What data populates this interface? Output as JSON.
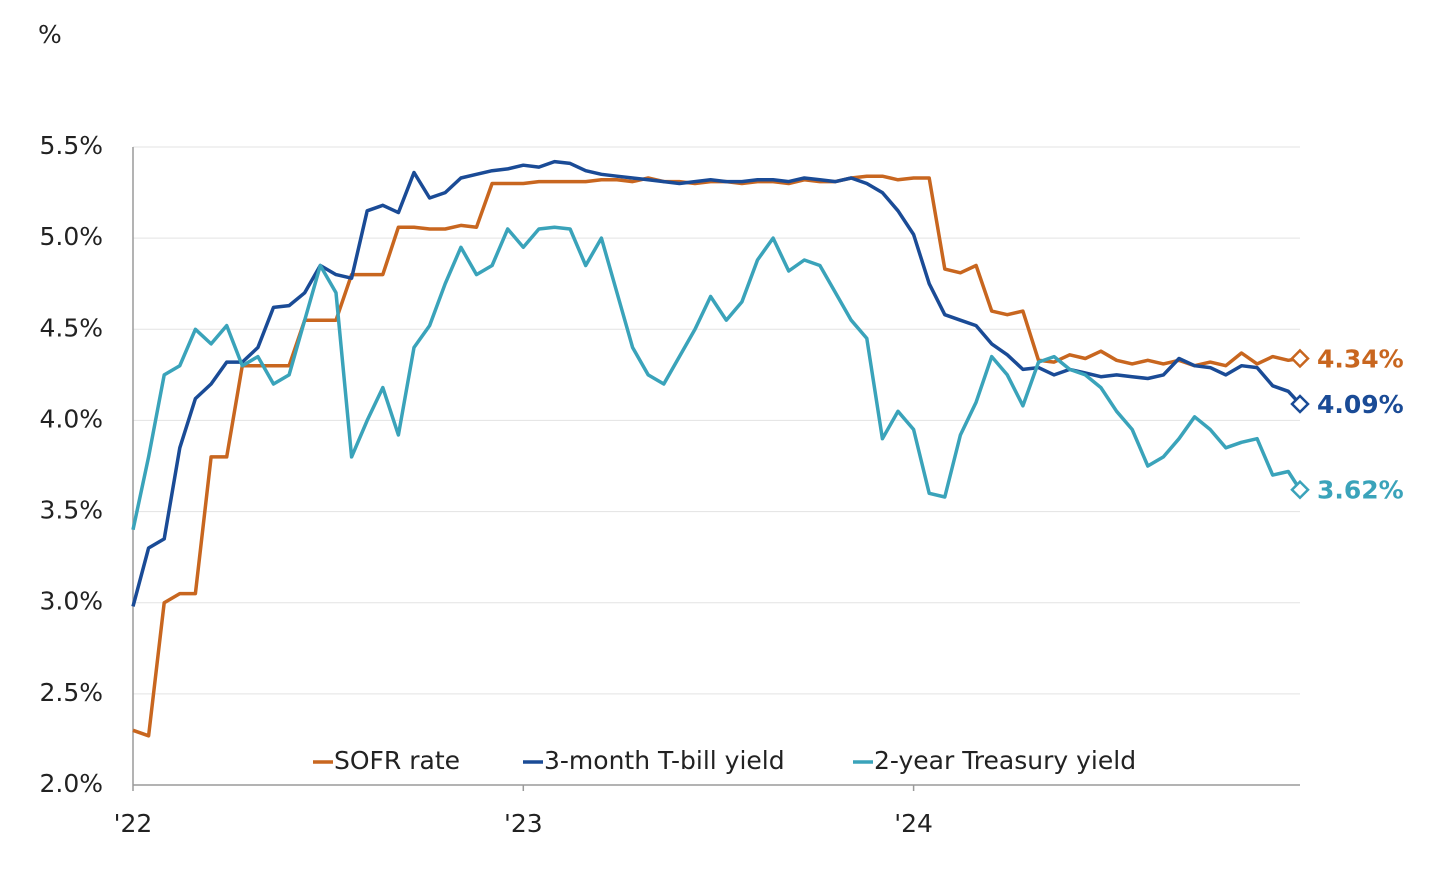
{
  "chart_data": {
    "type": "line",
    "title": "%",
    "x": [
      0,
      0.04,
      0.08,
      0.12,
      0.16,
      0.2,
      0.24,
      0.28,
      0.32,
      0.36,
      0.4,
      0.44,
      0.48,
      0.52,
      0.56,
      0.6,
      0.64,
      0.68,
      0.72,
      0.76,
      0.8,
      0.84,
      0.88,
      0.92,
      0.96,
      1,
      1.04,
      1.08,
      1.12,
      1.16,
      1.2,
      1.24,
      1.28,
      1.32,
      1.36,
      1.4,
      1.44,
      1.48,
      1.52,
      1.56,
      1.6,
      1.64,
      1.68,
      1.72,
      1.76,
      1.8,
      1.84,
      1.88,
      1.92,
      1.96,
      2,
      2.04,
      2.08,
      2.12,
      2.16,
      2.2,
      2.24,
      2.28,
      2.32,
      2.36,
      2.4,
      2.44,
      2.48,
      2.52,
      2.56,
      2.6,
      2.64,
      2.68,
      2.72,
      2.76,
      2.8,
      2.84,
      2.88,
      2.92,
      2.96,
      2.99
    ],
    "xlim": [
      0,
      2.99
    ],
    "xticks": [
      {
        "value": 0,
        "label": "'22"
      },
      {
        "value": 1,
        "label": "'23"
      },
      {
        "value": 2,
        "label": "'24"
      }
    ],
    "ylim": [
      2.0,
      5.5
    ],
    "yticks": [
      {
        "value": 2.0,
        "label": "2.0%"
      },
      {
        "value": 2.5,
        "label": "2.5%"
      },
      {
        "value": 3.0,
        "label": "3.0%"
      },
      {
        "value": 3.5,
        "label": "3.5%"
      },
      {
        "value": 4.0,
        "label": "4.0%"
      },
      {
        "value": 4.5,
        "label": "4.5%"
      },
      {
        "value": 5.0,
        "label": "5.0%"
      },
      {
        "value": 5.5,
        "label": "5.5%"
      }
    ],
    "grid": true,
    "legend": "bottom",
    "series": [
      {
        "name": "SOFR rate",
        "color": "#c8661f",
        "values": [
          2.3,
          2.27,
          3.0,
          3.05,
          3.05,
          3.8,
          3.8,
          4.3,
          4.3,
          4.3,
          4.3,
          4.55,
          4.55,
          4.55,
          4.8,
          4.8,
          4.8,
          5.06,
          5.06,
          5.05,
          5.05,
          5.07,
          5.06,
          5.3,
          5.3,
          5.3,
          5.31,
          5.31,
          5.31,
          5.31,
          5.32,
          5.32,
          5.31,
          5.33,
          5.31,
          5.31,
          5.3,
          5.31,
          5.31,
          5.3,
          5.31,
          5.31,
          5.3,
          5.32,
          5.31,
          5.31,
          5.33,
          5.34,
          5.34,
          5.32,
          5.33,
          5.33,
          4.83,
          4.81,
          4.85,
          4.6,
          4.58,
          4.6,
          4.33,
          4.32,
          4.36,
          4.34,
          4.38,
          4.33,
          4.31,
          4.33,
          4.31,
          4.33,
          4.3,
          4.32,
          4.3,
          4.37,
          4.31,
          4.35,
          4.33,
          4.34
        ],
        "value_labels": [
          null,
          null,
          null,
          null,
          null,
          null,
          null,
          null,
          null,
          null,
          null,
          null,
          null,
          null,
          null,
          null,
          null,
          null,
          null,
          null,
          null,
          null,
          null,
          null,
          null,
          null,
          null,
          null,
          null,
          null,
          null,
          null,
          null,
          null,
          null,
          null,
          null,
          null,
          null,
          null,
          null,
          null,
          null,
          null,
          null,
          null,
          null,
          null,
          null,
          null,
          null,
          null,
          null,
          null,
          null,
          null,
          null,
          null,
          null,
          null,
          null,
          null,
          null,
          null,
          null,
          null,
          null,
          null,
          null,
          null,
          null,
          null,
          null,
          null,
          null,
          "4.34%"
        ]
      },
      {
        "name": "3-month T-bill yield",
        "color": "#1a4b96",
        "values": [
          2.98,
          3.3,
          3.35,
          3.85,
          4.12,
          4.2,
          4.32,
          4.32,
          4.4,
          4.62,
          4.63,
          4.7,
          4.85,
          4.8,
          4.78,
          5.15,
          5.18,
          5.14,
          5.36,
          5.22,
          5.25,
          5.33,
          5.35,
          5.37,
          5.38,
          5.4,
          5.39,
          5.42,
          5.41,
          5.37,
          5.35,
          5.34,
          5.33,
          5.32,
          5.31,
          5.3,
          5.31,
          5.32,
          5.31,
          5.31,
          5.32,
          5.32,
          5.31,
          5.33,
          5.32,
          5.31,
          5.33,
          5.3,
          5.25,
          5.15,
          5.02,
          4.75,
          4.58,
          4.55,
          4.52,
          4.42,
          4.36,
          4.28,
          4.29,
          4.25,
          4.28,
          4.26,
          4.24,
          4.25,
          4.24,
          4.23,
          4.25,
          4.34,
          4.3,
          4.29,
          4.25,
          4.3,
          4.29,
          4.19,
          4.16,
          4.09
        ],
        "value_labels": [
          null,
          null,
          null,
          null,
          null,
          null,
          null,
          null,
          null,
          null,
          null,
          null,
          null,
          null,
          null,
          null,
          null,
          null,
          null,
          null,
          null,
          null,
          null,
          null,
          null,
          null,
          null,
          null,
          null,
          null,
          null,
          null,
          null,
          null,
          null,
          null,
          null,
          null,
          null,
          null,
          null,
          null,
          null,
          null,
          null,
          null,
          null,
          null,
          null,
          null,
          null,
          null,
          null,
          null,
          null,
          null,
          null,
          null,
          null,
          null,
          null,
          null,
          null,
          null,
          null,
          null,
          null,
          null,
          null,
          null,
          null,
          null,
          null,
          null,
          null,
          "4.09%"
        ]
      },
      {
        "name": "2-year Treasury yield",
        "color": "#3aa3ba",
        "values": [
          3.4,
          3.8,
          4.25,
          4.3,
          4.5,
          4.42,
          4.52,
          4.3,
          4.35,
          4.2,
          4.25,
          4.55,
          4.85,
          4.7,
          3.8,
          4.0,
          4.18,
          3.92,
          4.4,
          4.52,
          4.75,
          4.95,
          4.8,
          4.85,
          5.05,
          4.95,
          5.05,
          5.06,
          5.05,
          4.85,
          5.0,
          4.7,
          4.4,
          4.25,
          4.2,
          4.35,
          4.5,
          4.68,
          4.55,
          4.65,
          4.88,
          5.0,
          4.82,
          4.88,
          4.85,
          4.7,
          4.55,
          4.45,
          3.9,
          4.05,
          3.95,
          3.6,
          3.58,
          3.92,
          4.1,
          4.35,
          4.25,
          4.08,
          4.32,
          4.35,
          4.28,
          4.25,
          4.18,
          4.05,
          3.95,
          3.75,
          3.8,
          3.9,
          4.02,
          3.95,
          3.85,
          3.88,
          3.9,
          3.7,
          3.72,
          3.62
        ],
        "value_labels": [
          null,
          null,
          null,
          null,
          null,
          null,
          null,
          null,
          null,
          null,
          null,
          null,
          null,
          null,
          null,
          null,
          null,
          null,
          null,
          null,
          null,
          null,
          null,
          null,
          null,
          null,
          null,
          null,
          null,
          null,
          null,
          null,
          null,
          null,
          null,
          null,
          null,
          null,
          null,
          null,
          null,
          null,
          null,
          null,
          null,
          null,
          null,
          null,
          null,
          null,
          null,
          null,
          null,
          null,
          null,
          null,
          null,
          null,
          null,
          null,
          null,
          null,
          null,
          null,
          null,
          null,
          null,
          null,
          null,
          null,
          null,
          null,
          null,
          null,
          null,
          "3.62%"
        ]
      }
    ]
  }
}
